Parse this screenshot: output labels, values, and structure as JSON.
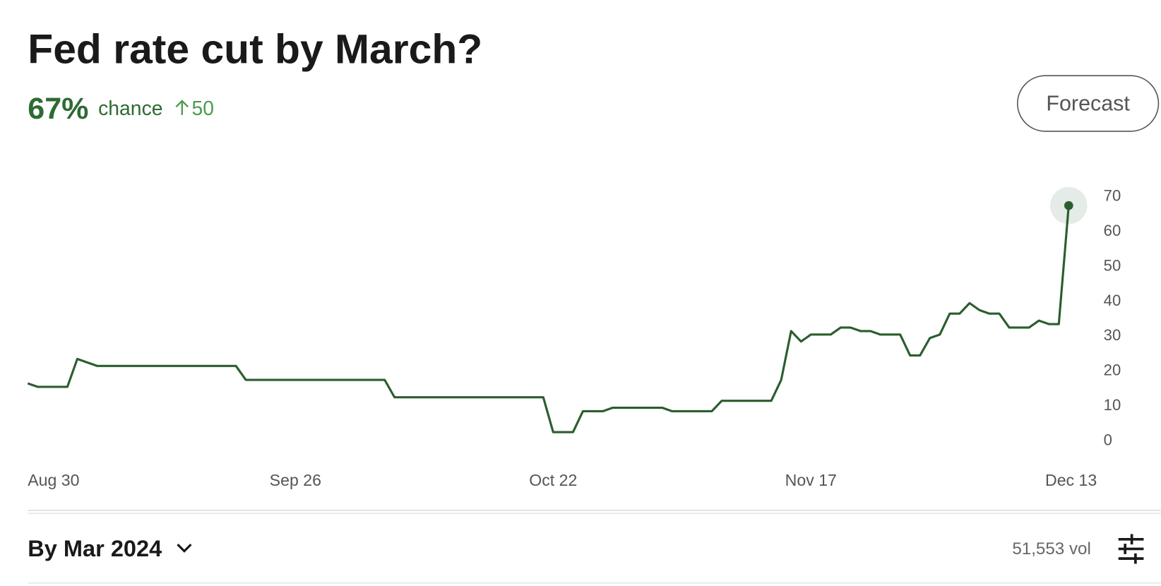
{
  "header": {
    "title": "Fed rate cut by March?",
    "chance_value": "67%",
    "chance_label": "chance",
    "change": "50",
    "button": "Forecast"
  },
  "chart_data": {
    "type": "line",
    "categories": [
      "Aug 30",
      null,
      null,
      null,
      null,
      null,
      null,
      null,
      null,
      null,
      null,
      null,
      null,
      null,
      null,
      null,
      null,
      null,
      null,
      null,
      null,
      null,
      null,
      null,
      null,
      null,
      null,
      "Sep 26",
      null,
      null,
      null,
      null,
      null,
      null,
      null,
      null,
      null,
      null,
      null,
      null,
      null,
      null,
      null,
      null,
      null,
      null,
      null,
      null,
      null,
      null,
      null,
      null,
      null,
      "Oct 22",
      null,
      null,
      null,
      null,
      null,
      null,
      null,
      null,
      null,
      null,
      null,
      null,
      null,
      null,
      null,
      null,
      null,
      null,
      null,
      null,
      null,
      null,
      null,
      null,
      null,
      "Nov 17",
      null,
      null,
      null,
      null,
      null,
      null,
      null,
      null,
      null,
      null,
      null,
      null,
      null,
      null,
      null,
      null,
      null,
      null,
      null,
      null,
      null,
      null,
      null,
      null,
      null,
      "Dec 13"
    ],
    "series": [
      {
        "color": "#2b5e2e",
        "values": [
          16,
          15,
          15,
          15,
          15,
          23,
          22,
          21,
          21,
          21,
          21,
          21,
          21,
          21,
          21,
          21,
          21,
          21,
          21,
          21,
          21,
          21,
          17,
          17,
          17,
          17,
          17,
          17,
          17,
          17,
          17,
          17,
          17,
          17,
          17,
          17,
          17,
          12,
          12,
          12,
          12,
          12,
          12,
          12,
          12,
          12,
          12,
          12,
          12,
          12,
          12,
          12,
          12,
          2,
          2,
          2,
          8,
          8,
          8,
          9,
          9,
          9,
          9,
          9,
          9,
          8,
          8,
          8,
          8,
          8,
          11,
          11,
          11,
          11,
          11,
          11,
          17,
          31,
          28,
          30,
          30,
          30,
          32,
          32,
          31,
          31,
          30,
          30,
          30,
          24,
          24,
          29,
          30,
          36,
          36,
          39,
          37,
          36,
          36,
          32,
          32,
          32,
          34,
          33,
          33,
          67
        ]
      }
    ],
    "ylim": [
      0,
      70
    ],
    "yticks": [
      0,
      10,
      20,
      30,
      40,
      50,
      60,
      70
    ],
    "grid": false
  },
  "footer": {
    "selector": "By Mar 2024",
    "volume": "51,553 vol"
  }
}
